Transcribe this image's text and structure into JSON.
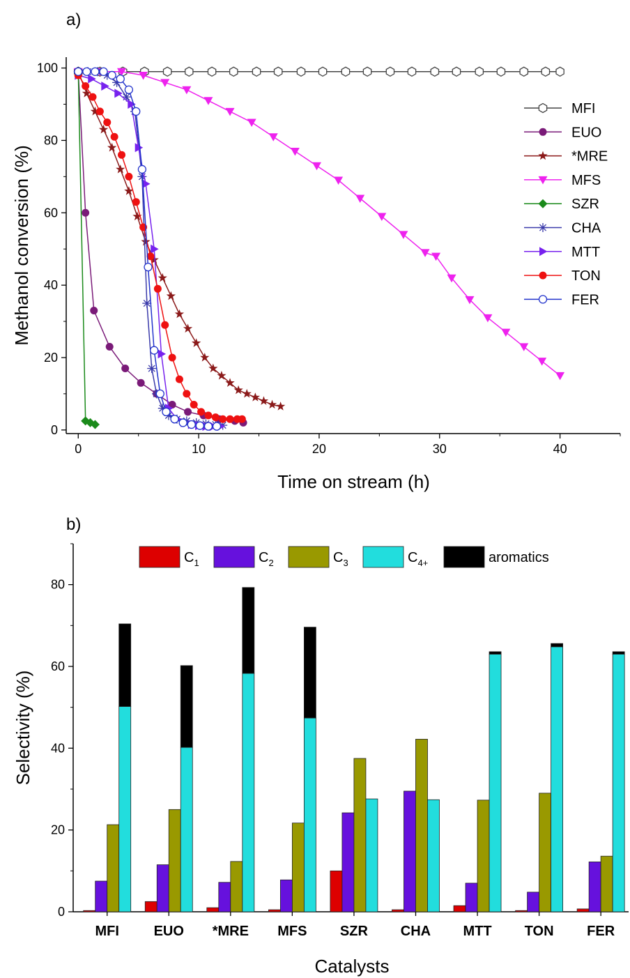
{
  "chart_data": [
    {
      "panel_label": "a)",
      "type": "line",
      "xlabel": "Time on stream (h)",
      "ylabel": "Methanol conversion (%)",
      "xlim": [
        -1,
        45
      ],
      "ylim": [
        -1,
        103
      ],
      "xticks": [
        0,
        10,
        20,
        30,
        40
      ],
      "yticks": [
        0,
        20,
        40,
        60,
        80,
        100
      ],
      "grid": false,
      "legend_position": "right",
      "series": [
        {
          "name": "MFI",
          "color": "#444444",
          "marker": "hexagon-open",
          "x": [
            0,
            1.8,
            3.7,
            5.5,
            7.4,
            9.2,
            11.1,
            12.9,
            14.8,
            16.6,
            18.5,
            20.3,
            22.2,
            24.0,
            25.9,
            27.7,
            29.6,
            31.4,
            33.3,
            35.1,
            37.0,
            38.8,
            40.0
          ],
          "y": [
            99,
            99,
            99,
            99,
            99,
            99,
            99,
            99,
            99,
            99,
            99,
            99,
            99,
            99,
            99,
            99,
            99,
            99,
            99,
            99,
            99,
            99,
            99
          ]
        },
        {
          "name": "EUO",
          "color": "#7a1a78",
          "marker": "circle",
          "x": [
            0,
            0.6,
            1.3,
            2.6,
            3.9,
            5.2,
            6.5,
            7.8,
            9.1,
            10.4,
            11.7,
            13.0,
            13.7
          ],
          "y": [
            99,
            60,
            33,
            23,
            17,
            13,
            10,
            7,
            5,
            4,
            3,
            2.5,
            2
          ]
        },
        {
          "name": "*MRE",
          "color": "#8b1a1a",
          "marker": "star",
          "x": [
            0,
            0.7,
            1.4,
            2.1,
            2.8,
            3.5,
            4.2,
            4.9,
            5.6,
            6.3,
            7.0,
            7.7,
            8.4,
            9.1,
            9.8,
            10.5,
            11.2,
            11.9,
            12.6,
            13.3,
            14.0,
            14.7,
            15.4,
            16.1,
            16.8
          ],
          "y": [
            99,
            93,
            88,
            83,
            78,
            72,
            66,
            59,
            52,
            47,
            42,
            37,
            32,
            28,
            24,
            20,
            17,
            15,
            13,
            11,
            10,
            9,
            8,
            7,
            6.5
          ]
        },
        {
          "name": "MFS",
          "color": "#ee22ee",
          "marker": "triangle-down",
          "x": [
            0,
            1.8,
            3.6,
            5.4,
            7.2,
            9.0,
            10.8,
            12.6,
            14.4,
            16.2,
            18.0,
            19.8,
            21.6,
            23.4,
            25.2,
            27.0,
            28.8,
            29.7,
            31.0,
            32.5,
            34.0,
            35.5,
            37.0,
            38.5,
            40.0
          ],
          "y": [
            99,
            99,
            99,
            98,
            96,
            94,
            91,
            88,
            85,
            81,
            77,
            73,
            69,
            64,
            59,
            54,
            49,
            48,
            42,
            36,
            31,
            27,
            23,
            19,
            15
          ]
        },
        {
          "name": "SZR",
          "color": "#1a8a1a",
          "marker": "diamond",
          "x": [
            0,
            0.6,
            1.0,
            1.4
          ],
          "y": [
            99,
            2.5,
            2,
            1.5
          ]
        },
        {
          "name": "CHA",
          "color": "#3a3aaa",
          "marker": "asterisk",
          "x": [
            0,
            0.8,
            1.6,
            2.4,
            3.2,
            4.0,
            4.7,
            5.3,
            5.7,
            6.1,
            6.5,
            7.0,
            7.5,
            8.2,
            9.0,
            9.8,
            10.6,
            11.4,
            12.0
          ],
          "y": [
            99,
            99,
            99,
            98,
            96,
            92,
            88,
            70,
            35,
            17,
            10,
            6,
            4,
            3,
            2.5,
            2,
            1.7,
            1.5,
            1.3
          ]
        },
        {
          "name": "MTT",
          "color": "#7722ee",
          "marker": "triangle-right",
          "x": [
            0,
            1.1,
            2.2,
            3.3,
            4.4,
            5.0,
            5.6,
            6.3,
            6.9,
            7.5,
            8.2,
            8.8,
            9.4,
            10.0,
            10.6,
            11.2,
            11.8
          ],
          "y": [
            98,
            97,
            95,
            93,
            90,
            78,
            68,
            50,
            21,
            6,
            3,
            2,
            1.5,
            1.2,
            1,
            1,
            1
          ]
        },
        {
          "name": "TON",
          "color": "#ee1111",
          "marker": "circle",
          "x": [
            0,
            0.6,
            1.2,
            1.8,
            2.4,
            3.0,
            3.6,
            4.2,
            4.8,
            5.4,
            6.0,
            6.6,
            7.2,
            7.8,
            8.4,
            9.0,
            9.6,
            10.2,
            10.8,
            11.4,
            12.0,
            12.6,
            13.2,
            13.6
          ],
          "y": [
            98,
            95,
            92,
            88,
            85,
            81,
            76,
            70,
            63,
            56,
            48,
            39,
            29,
            20,
            14,
            10,
            7,
            5,
            4,
            3.5,
            3,
            3,
            3,
            3
          ]
        },
        {
          "name": "FER",
          "color": "#2233cc",
          "marker": "circle-open",
          "x": [
            0,
            0.7,
            1.4,
            2.1,
            2.8,
            3.5,
            4.2,
            4.8,
            5.3,
            5.8,
            6.3,
            6.8,
            7.3,
            8.0,
            8.7,
            9.4,
            10.1,
            10.8,
            11.5
          ],
          "y": [
            99,
            99,
            99,
            99,
            98,
            97,
            94,
            88,
            72,
            45,
            22,
            10,
            5,
            3,
            2,
            1.5,
            1.2,
            1,
            1
          ]
        }
      ]
    },
    {
      "panel_label": "b)",
      "type": "bar",
      "xlabel": "Catalysts",
      "ylabel": "Selectivity (%)",
      "ylim": [
        0,
        90
      ],
      "yticks": [
        0,
        20,
        40,
        60,
        80
      ],
      "grid": false,
      "legend_position": "top",
      "categories": [
        "MFI",
        "EUO",
        "*MRE",
        "MFS",
        "SZR",
        "CHA",
        "MTT",
        "TON",
        "FER"
      ],
      "series": [
        {
          "name": "C",
          "sub": "1",
          "color": "#dd0000",
          "values": [
            0.3,
            2.5,
            1.0,
            0.5,
            10.0,
            0.5,
            1.5,
            0.3,
            0.7
          ]
        },
        {
          "name": "C",
          "sub": "2",
          "color": "#6611dd",
          "values": [
            7.5,
            11.5,
            7.2,
            7.8,
            24.2,
            29.5,
            7.0,
            4.8,
            12.2
          ]
        },
        {
          "name": "C",
          "sub": "3",
          "color": "#999900",
          "values": [
            21.3,
            25.0,
            12.3,
            21.7,
            37.5,
            42.2,
            27.3,
            29.0,
            13.6
          ]
        },
        {
          "name": "C",
          "sub": "4+",
          "color": "#22dddd",
          "values": [
            50.2,
            40.2,
            58.3,
            47.4,
            27.6,
            27.4,
            63.0,
            64.8,
            63.0
          ]
        },
        {
          "name": "aromatics",
          "sub": "",
          "color": "#000000",
          "stacked_on": "C4+",
          "values": [
            20.2,
            20.0,
            21.0,
            22.2,
            0,
            0,
            0.6,
            0.8,
            0.6
          ]
        }
      ]
    }
  ]
}
